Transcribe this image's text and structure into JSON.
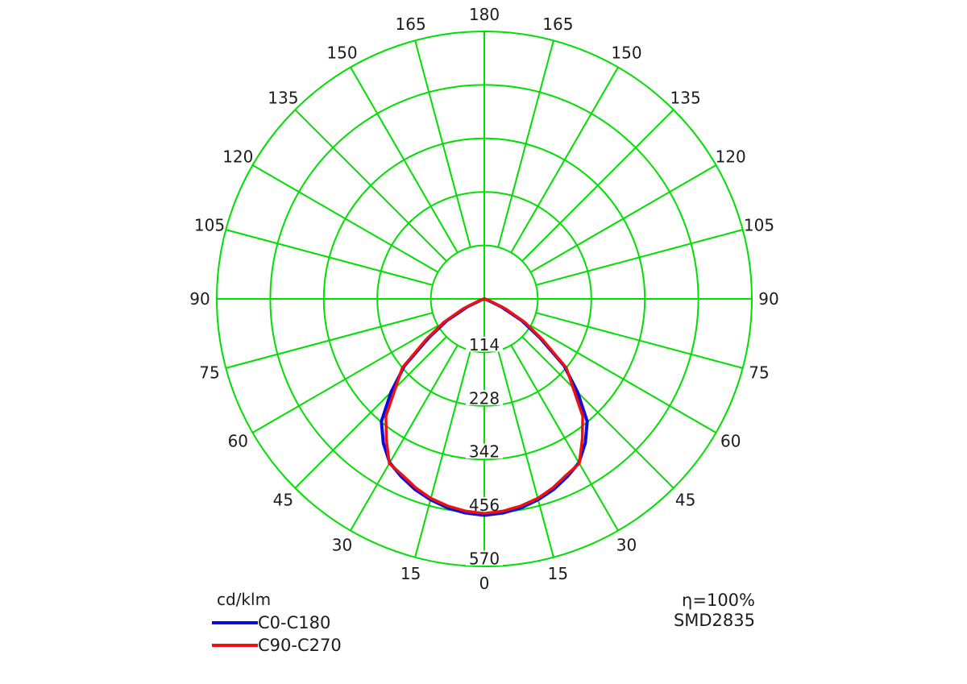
{
  "legend": {
    "unit_label": "cd/klm",
    "entries": [
      {
        "label": "C0-C180",
        "color": "#0b0bdc"
      },
      {
        "label": "C90-C270",
        "color": "#ee1111"
      }
    ]
  },
  "annotations": {
    "efficiency": "η=100%",
    "model": "SMD2835"
  },
  "chart_data": {
    "type": "polar-intensity-distribution",
    "unit": "cd/klm",
    "grid_color": "#00df00",
    "text_color": "#1c1c1c",
    "angle_tick_step_deg": 15,
    "angle_labels": [
      0,
      15,
      30,
      45,
      60,
      75,
      90,
      105,
      120,
      135,
      150,
      165,
      180
    ],
    "radial_ticks": [
      114,
      228,
      342,
      456,
      570
    ],
    "rmax": 570,
    "zero_at": "bottom",
    "symmetric_left_right": true,
    "series": [
      {
        "name": "C0-C180",
        "color": "#0b0bdc",
        "stroke_width": 4,
        "angles_deg": [
          0,
          5,
          10,
          15,
          20,
          25,
          30,
          35,
          40,
          45,
          50,
          55,
          60,
          65,
          70,
          75,
          80,
          85,
          90
        ],
        "values": [
          461,
          458,
          452,
          443,
          432,
          418,
          403,
          375,
          341,
          281,
          222,
          145,
          92,
          40,
          8,
          2,
          1,
          0,
          0
        ]
      },
      {
        "name": "C90-C270",
        "color": "#ee1111",
        "stroke_width": 3.5,
        "angles_deg": [
          0,
          5,
          10,
          15,
          20,
          25,
          30,
          35,
          40,
          45,
          50,
          55,
          60,
          65,
          70,
          75,
          80,
          85,
          90
        ],
        "values": [
          457,
          454,
          448,
          440,
          428,
          414,
          405,
          364,
          326,
          267,
          228,
          152,
          100,
          50,
          14,
          4,
          2,
          1,
          0
        ]
      }
    ]
  }
}
